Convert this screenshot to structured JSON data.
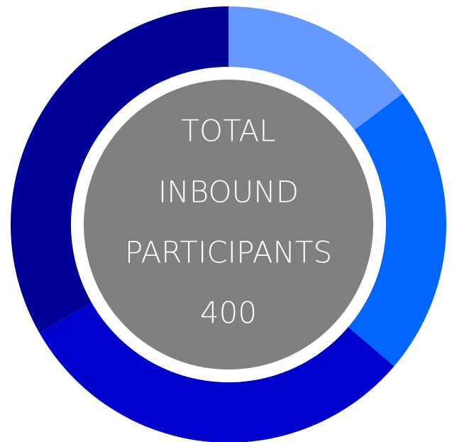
{
  "chart_data": {
    "type": "donut",
    "values": [
      59,
      86,
      122,
      133
    ],
    "colors": [
      "#6699ff",
      "#0066ff",
      "#0000cc",
      "#000099"
    ],
    "center_label": [
      "TOTAL",
      "INBOUND",
      "PARTICIPANTS"
    ],
    "total": 400
  }
}
